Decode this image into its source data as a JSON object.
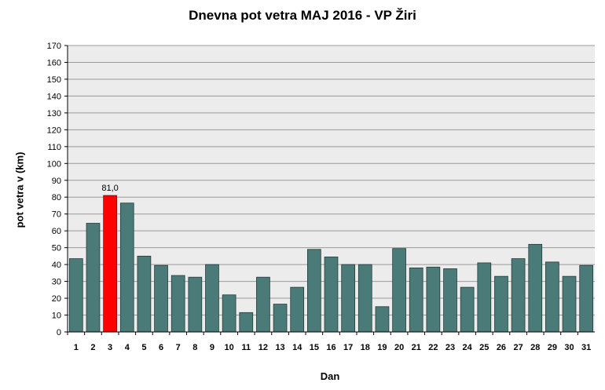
{
  "chart_data": {
    "type": "bar",
    "title": "Dnevna pot vetra MAJ 2016 - VP Žiri",
    "xlabel": "Dan",
    "ylabel": "pot vetra  v (km)",
    "ylim": [
      0,
      170
    ],
    "ytick_step": 10,
    "grid": true,
    "categories": [
      "1",
      "2",
      "3",
      "4",
      "5",
      "6",
      "7",
      "8",
      "9",
      "10",
      "11",
      "12",
      "13",
      "14",
      "15",
      "16",
      "17",
      "18",
      "19",
      "20",
      "21",
      "22",
      "23",
      "24",
      "25",
      "26",
      "27",
      "28",
      "29",
      "30",
      "31"
    ],
    "values": [
      43.5,
      64.5,
      81.0,
      76.5,
      45.0,
      39.5,
      33.5,
      32.5,
      40.0,
      22.0,
      11.5,
      32.5,
      16.5,
      26.5,
      49.0,
      44.5,
      40.0,
      40.0,
      15.0,
      49.5,
      38.0,
      38.5,
      37.5,
      26.5,
      41.0,
      33.0,
      43.5,
      52.0,
      41.5,
      33.0,
      39.5
    ],
    "highlight_index": 2,
    "annotations": [
      {
        "category": "3",
        "text": "81,0"
      }
    ],
    "colors": {
      "bar": "#4a7b78",
      "highlight": "#ff0000",
      "bar_border": "#243c3a",
      "plot_bg": "#ececec",
      "grid": "#9a9a9a"
    }
  }
}
